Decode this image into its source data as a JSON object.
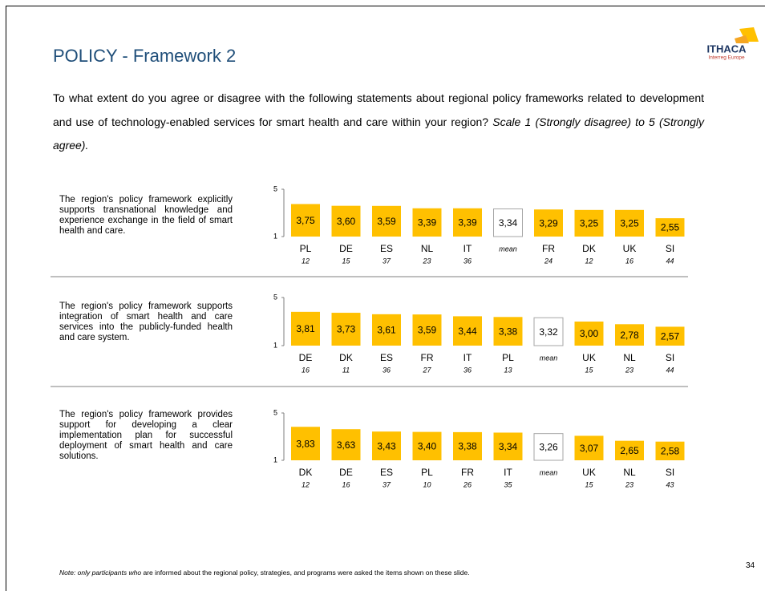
{
  "header": {
    "title": "POLICY - Framework 2",
    "logo_name": "ITHACA",
    "logo_sub": "Interreg Europe",
    "question": "To what extent do you agree or disagree with the following statements about regional policy frameworks related to development and use of technology-enabled services for smart health and care within your region?",
    "scale": "Scale 1 (Strongly disagree) to 5 (Strongly agree)."
  },
  "chart_data": [
    {
      "type": "bar",
      "statement": "The region's policy framework explicitly supports transnational knowledge and experience exchange in the field of smart health and care.",
      "categories": [
        "PL",
        "DE",
        "ES",
        "NL",
        "IT",
        "mean",
        "FR",
        "DK",
        "UK",
        "SI"
      ],
      "n": [
        "12",
        "15",
        "37",
        "23",
        "36",
        null,
        "24",
        "12",
        "16",
        "44"
      ],
      "values": [
        3.75,
        3.6,
        3.59,
        3.39,
        3.39,
        3.34,
        3.29,
        3.25,
        3.25,
        2.55
      ],
      "value_labels": [
        "3,75",
        "3,60",
        "3,59",
        "3,39",
        "3,39",
        "3,34",
        "3,29",
        "3,25",
        "3,25",
        "2,55"
      ],
      "colors": [
        "#ffc000",
        "#ffc000",
        "#ffc000",
        "#ffc000",
        "#ffc000",
        "#ffffff",
        "#ffc000",
        "#ffc000",
        "#ffc000",
        "#ffc000"
      ],
      "ylim": [
        1,
        5
      ],
      "yticks": [
        1,
        5
      ]
    },
    {
      "type": "bar",
      "statement": "The region's policy framework supports integration of smart health and care services into the publicly-funded health and care system.",
      "categories": [
        "DE",
        "DK",
        "ES",
        "FR",
        "IT",
        "PL",
        "mean",
        "UK",
        "NL",
        "SI"
      ],
      "n": [
        "16",
        "11",
        "36",
        "27",
        "36",
        "13",
        null,
        "15",
        "23",
        "44"
      ],
      "values": [
        3.81,
        3.73,
        3.61,
        3.59,
        3.44,
        3.38,
        3.32,
        3.0,
        2.78,
        2.57
      ],
      "value_labels": [
        "3,81",
        "3,73",
        "3,61",
        "3,59",
        "3,44",
        "3,38",
        "3,32",
        "3,00",
        "2,78",
        "2,57"
      ],
      "colors": [
        "#ffc000",
        "#ffc000",
        "#ffc000",
        "#ffc000",
        "#ffc000",
        "#ffc000",
        "#ffffff",
        "#ffc000",
        "#ffc000",
        "#ffc000"
      ],
      "ylim": [
        1,
        5
      ],
      "yticks": [
        1,
        5
      ]
    },
    {
      "type": "bar",
      "statement": "The region's policy framework provides support for developing a clear implementation plan for successful deployment of smart health and care solutions.",
      "categories": [
        "DK",
        "DE",
        "ES",
        "PL",
        "FR",
        "IT",
        "mean",
        "UK",
        "NL",
        "SI"
      ],
      "n": [
        "12",
        "16",
        "37",
        "10",
        "26",
        "35",
        null,
        "15",
        "23",
        "43"
      ],
      "values": [
        3.83,
        3.63,
        3.43,
        3.4,
        3.38,
        3.34,
        3.26,
        3.07,
        2.65,
        2.58
      ],
      "value_labels": [
        "3,83",
        "3,63",
        "3,43",
        "3,40",
        "3,38",
        "3,34",
        "3,26",
        "3,07",
        "2,65",
        "2,58"
      ],
      "colors": [
        "#ffc000",
        "#ffc000",
        "#ffc000",
        "#ffc000",
        "#ffc000",
        "#ffc000",
        "#ffffff",
        "#ffc000",
        "#ffc000",
        "#ffc000"
      ],
      "ylim": [
        1,
        5
      ],
      "yticks": [
        1,
        5
      ]
    }
  ],
  "footer": {
    "note_italic": "Note: only participants who",
    "note": "are informed about the regional policy, strategies, and programs were asked the items shown on these slide.",
    "page_number": "34"
  }
}
